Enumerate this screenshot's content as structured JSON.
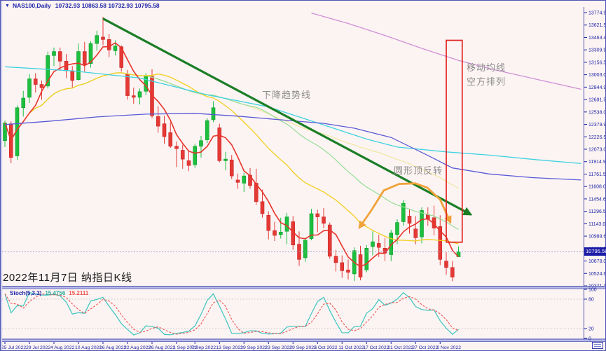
{
  "header": {
    "collapse_icon": "▼",
    "symbol_period": "NAS100,Daily",
    "ohlc_values": "10732.93 10863.58 10732.93 10795.58"
  },
  "price_box": {
    "value": "10795.58"
  },
  "indicator_label": {
    "name": "Stoch(5,3,3)",
    "main_value": "15.4756",
    "signal_value": "15.2111"
  },
  "annotations": {
    "downtrend": "下降趋势线",
    "rounded_top": "圆形顶反转",
    "ma_line1": "移动均线",
    "ma_line2": "空方排列",
    "date_note": "2022年11月7日 纳指日K线"
  },
  "colors": {
    "background": "#fcf4f3",
    "axis_text": "#1f25a8",
    "separator": "#5054b0",
    "separator_fill": "#b7bae8",
    "bull": "#1dbf3e",
    "bull_border": "#0d9c2c",
    "bear": "#e53935",
    "bear_border": "#c62828",
    "ma_fast": "#e8332a",
    "ma_mid": "#f2cf1f",
    "ma_slow": "#96dd96",
    "ma_slower": "#f0e6a0",
    "ma_cyan": "#3fd2e0",
    "ma_blue": "#5b5bd6",
    "ma_violet": "#d08fd6",
    "trendline": "#1b7e26",
    "arc": "#f0a23a",
    "rect": "#e0201d",
    "stoch_main": "#46c8c0",
    "stoch_signal": "#ef5350",
    "price_box_bg": "#1c1ca8",
    "grid_dotted": "#c4c4c4",
    "bid_line": "#9aa0c8",
    "annotation_gray": "#8c8c8c"
  },
  "chart_data": [
    {
      "type": "candlestick",
      "title": "NAS100 Daily",
      "y_axis": {
        "top_value": 13774.95,
        "bottom_value": 10371.15,
        "current_price": 10795.58,
        "labels": [
          "13774.95",
          "13621.50",
          "13463.40",
          "13309.95",
          "13156.50",
          "13003.05",
          "12844.95",
          "12691.50",
          "12538.05",
          "12379.95",
          "12226.50",
          "12073.05",
          "11914.95",
          "11761.50",
          "11608.05",
          "11454.60",
          "11296.50",
          "11143.05",
          "10989.60",
          "10831.50",
          "10678.05",
          "10524.60",
          "10371.15"
        ]
      },
      "x_axis": {
        "labels": [
          {
            "text": "25 Jul 2022",
            "day": 0
          },
          {
            "text": "29 Jul 2022",
            "day": 4
          },
          {
            "text": "4 Aug 2022",
            "day": 8
          },
          {
            "text": "10 Aug 2022",
            "day": 12
          },
          {
            "text": "16 Aug 2022",
            "day": 16
          },
          {
            "text": "22 Aug 2022",
            "day": 20
          },
          {
            "text": "26 Aug 2022",
            "day": 24
          },
          {
            "text": "1 Sep 2022",
            "day": 28
          },
          {
            "text": "7 Sep 2022",
            "day": 31
          },
          {
            "text": "13 Sep 2022",
            "day": 35
          },
          {
            "text": "19 Sep 2022",
            "day": 39
          },
          {
            "text": "23 Sep 2022",
            "day": 43
          },
          {
            "text": "29 Sep 2022",
            "day": 47
          },
          {
            "text": "5 Oct 2022",
            "day": 51
          },
          {
            "text": "11 Oct 2022",
            "day": 55
          },
          {
            "text": "17 Oct 2022",
            "day": 59
          },
          {
            "text": "21 Oct 2022",
            "day": 63
          },
          {
            "text": "27 Oct 2022",
            "day": 67
          },
          {
            "text": "2 Nov 2022",
            "day": 71
          }
        ]
      },
      "candles": {
        "first_date": "25 Jul 2022",
        "last_date": "7 Nov 2022",
        "ohlc": [
          [
            12180,
            12430,
            12100,
            12400
          ],
          [
            12390,
            12420,
            11900,
            11970
          ],
          [
            11990,
            12620,
            11940,
            12590
          ],
          [
            12590,
            12800,
            12480,
            12710
          ],
          [
            12720,
            13010,
            12650,
            12950
          ],
          [
            12950,
            13020,
            12780,
            12880
          ],
          [
            12880,
            12930,
            12690,
            12840
          ],
          [
            12860,
            13290,
            12830,
            13240
          ],
          [
            13240,
            13340,
            13110,
            13290
          ],
          [
            13290,
            13340,
            13050,
            13170
          ],
          [
            13170,
            13260,
            12960,
            13050
          ],
          [
            13050,
            13110,
            12830,
            12930
          ],
          [
            12940,
            13390,
            12930,
            13290
          ],
          [
            13290,
            13410,
            13040,
            13130
          ],
          [
            13140,
            13420,
            13090,
            13390
          ],
          [
            13390,
            13550,
            13300,
            13490
          ],
          [
            13470,
            13722,
            13370,
            13440
          ],
          [
            13440,
            13510,
            13220,
            13310
          ],
          [
            13300,
            13430,
            13240,
            13360
          ],
          [
            13350,
            13365,
            13040,
            13090
          ],
          [
            13010,
            13060,
            12690,
            12740
          ],
          [
            12740,
            12840,
            12640,
            12720
          ],
          [
            12720,
            12830,
            12630,
            12790
          ],
          [
            12795,
            13020,
            12750,
            12980
          ],
          [
            12980,
            13070,
            12460,
            12490
          ],
          [
            12480,
            12610,
            12280,
            12360
          ],
          [
            12390,
            12490,
            12140,
            12230
          ],
          [
            12280,
            12410,
            12090,
            12110
          ],
          [
            12110,
            12170,
            11850,
            12080
          ],
          [
            12060,
            12130,
            11830,
            11950
          ],
          [
            11930,
            12060,
            11800,
            11870
          ],
          [
            11880,
            12140,
            11840,
            12110
          ],
          [
            12110,
            12240,
            11970,
            12180
          ],
          [
            12190,
            12460,
            12150,
            12430
          ],
          [
            12440,
            12670,
            12410,
            12590
          ],
          [
            12340,
            12390,
            11910,
            11930
          ],
          [
            11930,
            12040,
            11810,
            11950
          ],
          [
            11940,
            12000,
            11700,
            11740
          ],
          [
            11690,
            11770,
            11580,
            11660
          ],
          [
            11650,
            11780,
            11540,
            11740
          ],
          [
            11750,
            11840,
            11580,
            11620
          ],
          [
            11650,
            11830,
            11380,
            11420
          ],
          [
            11420,
            11570,
            11220,
            11270
          ],
          [
            11250,
            11300,
            10950,
            11060
          ],
          [
            11060,
            11170,
            10930,
            11000
          ],
          [
            11010,
            11220,
            10960,
            11040
          ],
          [
            11050,
            11280,
            10890,
            11230
          ],
          [
            11170,
            11240,
            10820,
            10880
          ],
          [
            10890,
            11050,
            10620,
            10700
          ],
          [
            10720,
            10970,
            10670,
            10940
          ],
          [
            10960,
            11330,
            10940,
            11270
          ],
          [
            11270,
            11320,
            11040,
            11230
          ],
          [
            11230,
            11340,
            11090,
            11150
          ],
          [
            11130,
            11160,
            10710,
            10740
          ],
          [
            10740,
            10820,
            10550,
            10660
          ],
          [
            10660,
            10750,
            10470,
            10560
          ],
          [
            10570,
            10700,
            10450,
            10540
          ],
          [
            10520,
            10850,
            10430,
            10810
          ],
          [
            10760,
            10870,
            10440,
            10480
          ],
          [
            10570,
            10880,
            10540,
            10840
          ],
          [
            10860,
            11050,
            10750,
            10920
          ],
          [
            10900,
            11010,
            10730,
            10850
          ],
          [
            10840,
            10970,
            10680,
            10780
          ],
          [
            10760,
            11070,
            10680,
            11030
          ],
          [
            11010,
            11200,
            10890,
            11160
          ],
          [
            11170,
            11440,
            11120,
            11400
          ],
          [
            11240,
            11330,
            11020,
            11150
          ],
          [
            11080,
            11240,
            10890,
            10970
          ],
          [
            10980,
            11350,
            10900,
            11310
          ],
          [
            11260,
            11350,
            11120,
            11200
          ],
          [
            11220,
            11370,
            11000,
            11090
          ],
          [
            11110,
            11250,
            10630,
            10700
          ],
          [
            10680,
            10790,
            10510,
            10600
          ],
          [
            10600,
            10680,
            10430,
            10480
          ],
          [
            10732.93,
            10863.58,
            10732.93,
            10795.58
          ]
        ]
      },
      "moving_averages": [
        {
          "name": "ma-fast",
          "period": 5,
          "color_key": "ma_fast",
          "width": 1.6
        },
        {
          "name": "ma-mid",
          "period": 24,
          "color_key": "ma_mid",
          "width": 1.3
        },
        {
          "name": "ma-slow",
          "period": 40,
          "color_key": "ma_slow",
          "width": 1.2
        },
        {
          "name": "ma-slower",
          "period": 60,
          "color_key": "ma_slower",
          "width": 1.2
        }
      ],
      "long_mas": [
        {
          "name": "ma-cyan",
          "color_key": "ma_cyan",
          "points": [
            [
              0,
              13100
            ],
            [
              11,
              13050
            ],
            [
              22,
              12960
            ],
            [
              33,
              12750
            ],
            [
              43,
              12600
            ],
            [
              51,
              12400
            ],
            [
              59,
              12200
            ],
            [
              64,
              12100
            ],
            [
              72,
              12040
            ],
            [
              79,
              12000
            ],
            [
              87,
              11940
            ],
            [
              94,
              11895
            ]
          ]
        },
        {
          "name": "ma-blue",
          "color_key": "ma_blue",
          "points": [
            [
              0,
              12380
            ],
            [
              7,
              12420
            ],
            [
              15,
              12475
            ],
            [
              23,
              12510
            ],
            [
              31,
              12520
            ],
            [
              38,
              12485
            ],
            [
              45,
              12440
            ],
            [
              52,
              12395
            ],
            [
              57,
              12335
            ],
            [
              63,
              12220
            ],
            [
              69,
              11995
            ],
            [
              73,
              11840
            ],
            [
              79,
              11765
            ],
            [
              86,
              11720
            ],
            [
              94,
              11690
            ]
          ]
        },
        {
          "name": "ma-violet",
          "color_key": "ma_violet",
          "points": [
            [
              50,
              13770
            ],
            [
              56,
              13640
            ],
            [
              62,
              13490
            ],
            [
              68,
              13330
            ],
            [
              74,
              13180
            ],
            [
              80,
              13060
            ],
            [
              87,
              12940
            ],
            [
              94,
              12820
            ]
          ]
        }
      ],
      "drawings": {
        "trendline": {
          "from": [
            16,
            13700
          ],
          "to": [
            76,
            11260
          ]
        },
        "rounded_top_arc": {
          "points": [
            [
              57.8,
              11095
            ],
            [
              59.8,
              11315
            ],
            [
              61.8,
              11560
            ],
            [
              64.3,
              11640
            ],
            [
              66.9,
              11648
            ],
            [
              68.9,
              11595
            ],
            [
              71,
              11445
            ],
            [
              72.7,
              11160
            ]
          ]
        },
        "highlight_rect": {
          "day_from": 72,
          "day_to": 74.6,
          "price_top": 13430,
          "price_bottom": 10915
        }
      }
    },
    {
      "type": "line",
      "title": "Stoch(5,3,3)",
      "params": {
        "k_period": 5,
        "d_period": 3,
        "slowing": 3
      },
      "displayed_values": {
        "main": "15.4756",
        "signal": "15.2111"
      },
      "y_axis": {
        "labels": [
          {
            "text": "100",
            "value": 100
          },
          {
            "text": "80",
            "value": 80
          },
          {
            "text": "20",
            "value": 20
          },
          {
            "text": "0",
            "value": 0
          }
        ],
        "level_lines": [
          80,
          20
        ]
      }
    }
  ]
}
